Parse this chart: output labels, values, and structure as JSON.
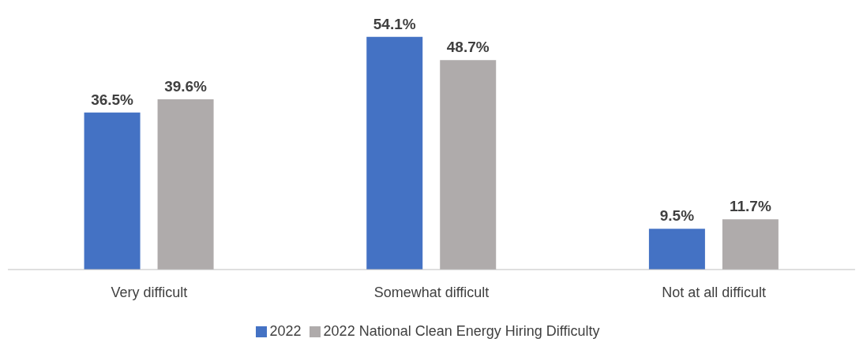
{
  "chart_data": {
    "type": "bar",
    "categories": [
      "Very difficult",
      "Somewhat difficult",
      "Not at all difficult"
    ],
    "series": [
      {
        "name": "2022",
        "color": "#4472c4",
        "values": [
          36.5,
          54.1,
          9.5
        ],
        "value_labels": [
          "36.5%",
          "54.1%",
          "9.5%"
        ]
      },
      {
        "name": "2022 National Clean Energy Hiring Difficulty",
        "color": "#afabab",
        "values": [
          39.6,
          48.7,
          11.7
        ],
        "value_labels": [
          "39.6%",
          "48.7%",
          "11.7%"
        ]
      }
    ],
    "grid": false,
    "legend": "bottom"
  }
}
